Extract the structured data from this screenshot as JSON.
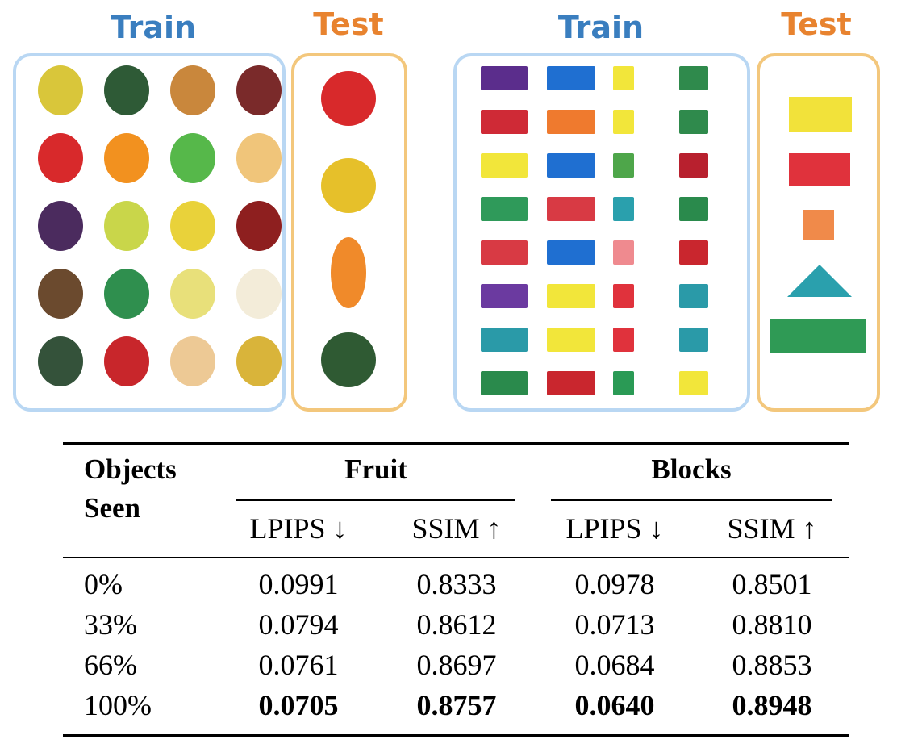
{
  "colors": {
    "train": "#3a7ebf",
    "test": "#e8832f",
    "train_border": "#b9d7f3",
    "test_border": "#f3c77c"
  },
  "panels": {
    "fruit_train_label": "Train",
    "fruit_test_label": "Test",
    "blocks_train_label": "Train",
    "blocks_test_label": "Test"
  },
  "objects": {
    "fruit_train": [
      "#d9c63a",
      "#2e5a36",
      "#c9873c",
      "#7a2a2a",
      "#d8292b",
      "#f2911f",
      "#56b84a",
      "#f0c57a",
      "#4b2b5e",
      "#c9d64a",
      "#e9d23a",
      "#8e1f1f",
      "#6b4a2e",
      "#2f8f4e",
      "#e8e07a",
      "#f3ecd9",
      "#34523a",
      "#c8262b",
      "#edc995",
      "#d9b43a"
    ],
    "fruit_test": [
      "#d8292b",
      "#e6c02a",
      "#f08a2a",
      "#2f5a33"
    ],
    "blocks_train": [
      "#5b2d8c",
      "#1f6fd1",
      "#f2e63a",
      "#2f8a4c",
      "#cf2a36",
      "#ef7a2e",
      "#f2e63a",
      "#2f8a4c",
      "#f2e63a",
      "#1f6fd1",
      "#4ea64a",
      "#b8202e",
      "#2f9a5a",
      "#d83a44",
      "#2aa0ad",
      "#2a8a4c",
      "#d83a44",
      "#1f6fd1",
      "#ef8a8f",
      "#c9262e",
      "#6b3aa0",
      "#f2e63a",
      "#e0323c",
      "#2a9aa8",
      "#2a9aa8",
      "#f2e63a",
      "#e0323c",
      "#2a9aa8",
      "#2a8a4c",
      "#c9262e",
      "#2a9a55",
      "#f2e63a"
    ],
    "blocks_test": [
      "#f2e23a",
      "#e0323c",
      "#f08a4a",
      "#2aa0ad",
      "#2f9a55"
    ]
  },
  "table": {
    "col_header": "Objects Seen",
    "col_header_line1": "Objects",
    "col_header_line2": "Seen",
    "groups": [
      "Fruit",
      "Blocks"
    ],
    "metrics": [
      "LPIPS ↓",
      "SSIM ↑",
      "LPIPS ↓",
      "SSIM ↑"
    ],
    "rows": [
      {
        "label": "0%",
        "values": [
          "0.0991",
          "0.8333",
          "0.0978",
          "0.8501"
        ],
        "bold": false
      },
      {
        "label": "33%",
        "values": [
          "0.0794",
          "0.8612",
          "0.0713",
          "0.8810"
        ],
        "bold": false
      },
      {
        "label": "66%",
        "values": [
          "0.0761",
          "0.8697",
          "0.0684",
          "0.8853"
        ],
        "bold": false
      },
      {
        "label": "100%",
        "values": [
          "0.0705",
          "0.8757",
          "0.0640",
          "0.8948"
        ],
        "bold": true
      }
    ]
  }
}
